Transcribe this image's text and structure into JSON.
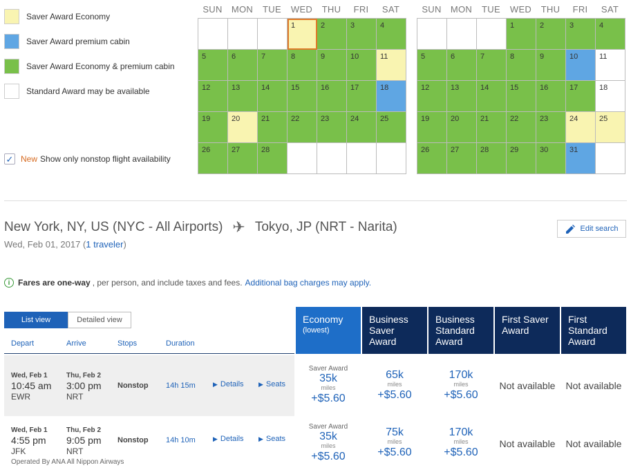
{
  "legend": [
    {
      "label": "Saver Award Economy",
      "color": "#f9f4b1"
    },
    {
      "label": "Saver Award premium cabin",
      "color": "#5fa6e3"
    },
    {
      "label": "Saver Award Economy & premium cabin",
      "color": "#79c04a"
    },
    {
      "label": "Standard Award may be available",
      "color": "#ffffff"
    }
  ],
  "nonstop": {
    "new_label": "New",
    "label": "Show only nonstop flight availability",
    "checked": "✓"
  },
  "weekdays": [
    "SUN",
    "MON",
    "TUE",
    "WED",
    "THU",
    "FRI",
    "SAT"
  ],
  "calendars": [
    {
      "lead_blanks": 3,
      "days": [
        {
          "d": "1",
          "s": "yellow",
          "sel": true
        },
        {
          "d": "2",
          "s": "green"
        },
        {
          "d": "3",
          "s": "green"
        },
        {
          "d": "4",
          "s": "green"
        },
        {
          "d": "5",
          "s": "green"
        },
        {
          "d": "6",
          "s": "green"
        },
        {
          "d": "7",
          "s": "green"
        },
        {
          "d": "8",
          "s": "green"
        },
        {
          "d": "9",
          "s": "green"
        },
        {
          "d": "10",
          "s": "green"
        },
        {
          "d": "11",
          "s": "yellow"
        },
        {
          "d": "12",
          "s": "green"
        },
        {
          "d": "13",
          "s": "green"
        },
        {
          "d": "14",
          "s": "green"
        },
        {
          "d": "15",
          "s": "green"
        },
        {
          "d": "16",
          "s": "green"
        },
        {
          "d": "17",
          "s": "green"
        },
        {
          "d": "18",
          "s": "blue"
        },
        {
          "d": "19",
          "s": "green"
        },
        {
          "d": "20",
          "s": "yellow"
        },
        {
          "d": "21",
          "s": "green"
        },
        {
          "d": "22",
          "s": "green"
        },
        {
          "d": "23",
          "s": "green"
        },
        {
          "d": "24",
          "s": "green"
        },
        {
          "d": "25",
          "s": "green"
        },
        {
          "d": "26",
          "s": "green"
        },
        {
          "d": "27",
          "s": "green"
        },
        {
          "d": "28",
          "s": "green"
        }
      ],
      "trail_blanks": 4
    },
    {
      "lead_blanks": 3,
      "days": [
        {
          "d": "1",
          "s": "green"
        },
        {
          "d": "2",
          "s": "green"
        },
        {
          "d": "3",
          "s": "green"
        },
        {
          "d": "4",
          "s": "green"
        },
        {
          "d": "5",
          "s": "green"
        },
        {
          "d": "6",
          "s": "green"
        },
        {
          "d": "7",
          "s": "green"
        },
        {
          "d": "8",
          "s": "green"
        },
        {
          "d": "9",
          "s": "green"
        },
        {
          "d": "10",
          "s": "blue"
        },
        {
          "d": "11",
          "s": "white"
        },
        {
          "d": "12",
          "s": "green"
        },
        {
          "d": "13",
          "s": "green"
        },
        {
          "d": "14",
          "s": "green"
        },
        {
          "d": "15",
          "s": "green"
        },
        {
          "d": "16",
          "s": "green"
        },
        {
          "d": "17",
          "s": "green"
        },
        {
          "d": "18",
          "s": "white"
        },
        {
          "d": "19",
          "s": "green"
        },
        {
          "d": "20",
          "s": "green"
        },
        {
          "d": "21",
          "s": "green"
        },
        {
          "d": "22",
          "s": "green"
        },
        {
          "d": "23",
          "s": "green"
        },
        {
          "d": "24",
          "s": "yellow"
        },
        {
          "d": "25",
          "s": "yellow"
        },
        {
          "d": "26",
          "s": "green"
        },
        {
          "d": "27",
          "s": "green"
        },
        {
          "d": "28",
          "s": "green"
        },
        {
          "d": "29",
          "s": "green"
        },
        {
          "d": "30",
          "s": "green"
        },
        {
          "d": "31",
          "s": "blue"
        },
        {
          "d": "",
          "s": "white"
        }
      ],
      "trail_blanks": 0
    }
  ],
  "route": {
    "origin": "New York, NY, US (NYC - All Airports)",
    "destination": "Tokyo, JP (NRT - Narita)",
    "date": "Wed, Feb 01, 2017 (",
    "travelers": "1 traveler",
    "date_close": ")",
    "edit_search": "Edit search"
  },
  "info": {
    "bold": "Fares are one-way",
    "text": ", per person, and include taxes and fees.",
    "link": "Additional bag charges may apply."
  },
  "view": {
    "list": "List view",
    "detailed": "Detailed view"
  },
  "columns": {
    "depart": "Depart",
    "arrive": "Arrive",
    "stops": "Stops",
    "duration": "Duration"
  },
  "fare_headers": [
    {
      "title": "Economy",
      "sub": "(lowest)"
    },
    {
      "title": "Business Saver Award",
      "sub": ""
    },
    {
      "title": "Business Standard Award",
      "sub": ""
    },
    {
      "title": "First Saver Award",
      "sub": ""
    },
    {
      "title": "First Standard Award",
      "sub": ""
    }
  ],
  "flights": [
    {
      "dep_date": "Wed, Feb 1",
      "dep_time": "10:45 am",
      "dep_code": "EWR",
      "arr_date": "Thu, Feb 2",
      "arr_time": "3:00 pm",
      "arr_code": "NRT",
      "stops": "Nonstop",
      "duration": "14h 15m",
      "details": "Details",
      "seats": "Seats",
      "operated": "",
      "fares": [
        {
          "tag": "Saver Award",
          "miles": "35k",
          "miles_lbl": "miles",
          "tax": "+$5.60"
        },
        {
          "tag": "",
          "miles": "65k",
          "miles_lbl": "miles",
          "tax": "+$5.60"
        },
        {
          "tag": "",
          "miles": "170k",
          "miles_lbl": "miles",
          "tax": "+$5.60"
        },
        {
          "na": "Not available"
        },
        {
          "na": "Not available"
        }
      ]
    },
    {
      "dep_date": "Wed, Feb 1",
      "dep_time": "4:55 pm",
      "dep_code": "JFK",
      "arr_date": "Thu, Feb 2",
      "arr_time": "9:05 pm",
      "arr_code": "NRT",
      "stops": "Nonstop",
      "duration": "14h 10m",
      "details": "Details",
      "seats": "Seats",
      "operated": "Operated By ANA All Nippon Airways",
      "fares": [
        {
          "tag": "Saver Award",
          "miles": "35k",
          "miles_lbl": "miles",
          "tax": "+$5.60"
        },
        {
          "tag": "",
          "miles": "75k",
          "miles_lbl": "miles",
          "tax": "+$5.60"
        },
        {
          "tag": "",
          "miles": "170k",
          "miles_lbl": "miles",
          "tax": "+$5.60"
        },
        {
          "na": "Not available"
        },
        {
          "na": "Not available"
        }
      ]
    }
  ]
}
